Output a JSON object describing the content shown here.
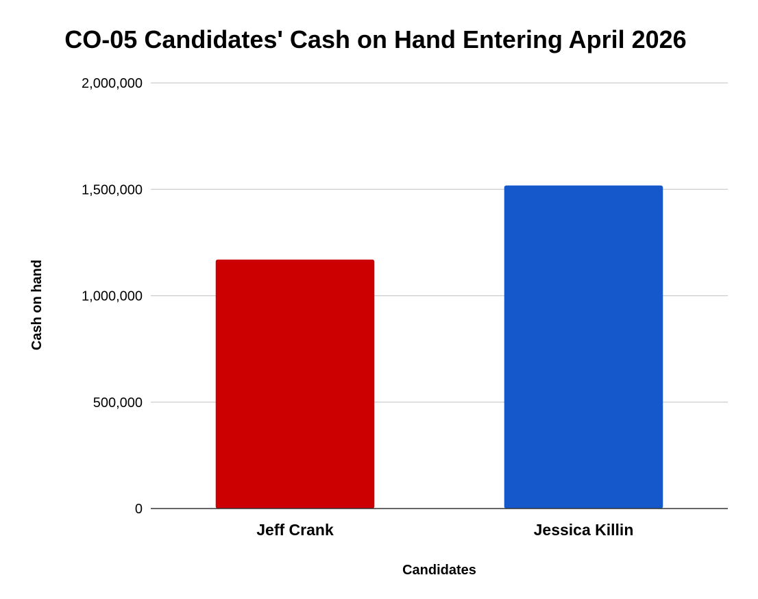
{
  "chart_data": {
    "type": "bar",
    "title": "CO-05 Candidates' Cash on Hand Entering April 2026",
    "xlabel": "Candidates",
    "ylabel": "Cash on hand",
    "categories": [
      "Jeff Crank",
      "Jessica Killin"
    ],
    "values": [
      1170000,
      1518000
    ],
    "ylim": [
      0,
      2000000
    ],
    "yticks": [
      0,
      500000,
      1000000,
      1500000,
      2000000
    ],
    "ytick_labels": [
      "0",
      "500,000",
      "1,000,000",
      "1,500,000",
      "2,000,000"
    ],
    "bar_colors": [
      "#cc0000",
      "#1558cc"
    ],
    "grid": true,
    "legend": "none"
  }
}
